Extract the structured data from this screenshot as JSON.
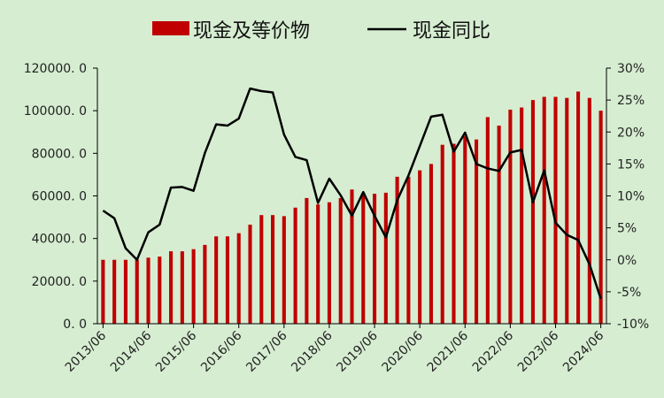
{
  "chart_data": {
    "type": "bar+line",
    "title": "",
    "legend": {
      "placement": "top-center",
      "items": [
        {
          "label": "现金及等价物",
          "kind": "bar",
          "color": "#c00000"
        },
        {
          "label": "现金同比",
          "kind": "line",
          "color": "#000000"
        }
      ]
    },
    "colors": {
      "bar": "#c00000",
      "line": "#000000",
      "background": "#d6edd1"
    },
    "x_tick_labels": [
      "2013/06",
      "2014/06",
      "2015/06",
      "2016/06",
      "2017/06",
      "2018/06",
      "2019/06",
      "2020/06",
      "2021/06",
      "2022/06",
      "2023/06",
      "2024/06"
    ],
    "y_left": {
      "min": 0,
      "max": 120000,
      "step": 20000,
      "tick_labels": [
        "0. 0",
        "20000. 0",
        "40000. 0",
        "60000. 0",
        "80000. 0",
        "100000. 0",
        "120000. 0"
      ]
    },
    "y_right": {
      "min": -10,
      "max": 30,
      "step": 5,
      "tick_labels": [
        "-10%",
        "-5%",
        "0%",
        "5%",
        "10%",
        "15%",
        "20%",
        "25%",
        "30%"
      ]
    },
    "grid": false,
    "categories": [
      "2013Q2",
      "2013Q3",
      "2013Q4",
      "2014Q1",
      "2014Q2",
      "2014Q3",
      "2014Q4",
      "2015Q1",
      "2015Q2",
      "2015Q3",
      "2015Q4",
      "2016Q1",
      "2016Q2",
      "2016Q3",
      "2016Q4",
      "2017Q1",
      "2017Q2",
      "2017Q3",
      "2017Q4",
      "2018Q1",
      "2018Q2",
      "2018Q3",
      "2018Q4",
      "2019Q1",
      "2019Q2",
      "2019Q3",
      "2019Q4",
      "2020Q1",
      "2020Q2",
      "2020Q3",
      "2020Q4",
      "2021Q1",
      "2021Q2",
      "2021Q3",
      "2021Q4",
      "2022Q1",
      "2022Q2",
      "2022Q3",
      "2022Q4",
      "2023Q1",
      "2023Q2",
      "2023Q3",
      "2023Q4",
      "2024Q1",
      "2024Q2"
    ],
    "series": [
      {
        "name": "现金及等价物",
        "axis": "left",
        "kind": "bar",
        "values": [
          30000,
          30000,
          30000,
          30000,
          31000,
          31500,
          34000,
          34000,
          35000,
          37000,
          41000,
          41000,
          42500,
          46500,
          51000,
          51000,
          50500,
          54500,
          59000,
          56000,
          57000,
          59000,
          63000,
          61500,
          61000,
          61500,
          69000,
          69000,
          72000,
          75000,
          84000,
          84500,
          88000,
          86500,
          97000,
          93000,
          100500,
          101500,
          105000,
          106500,
          106500,
          106000,
          109000,
          106000,
          100000
        ]
      },
      {
        "name": "现金同比",
        "axis": "right",
        "kind": "line",
        "values": [
          7.7,
          6.5,
          1.8,
          0.0,
          4.3,
          5.5,
          11.3,
          11.4,
          10.8,
          16.7,
          21.2,
          21.0,
          22.1,
          26.8,
          26.4,
          26.2,
          19.6,
          16.1,
          15.6,
          8.9,
          12.7,
          10.1,
          6.9,
          10.6,
          6.9,
          3.5,
          9.3,
          13.2,
          17.8,
          22.4,
          22.7,
          16.9,
          19.9,
          15.0,
          14.3,
          13.9,
          16.8,
          17.2,
          9.0,
          14.0,
          5.8,
          3.9,
          3.1,
          -0.7,
          -6.1
        ]
      }
    ]
  }
}
